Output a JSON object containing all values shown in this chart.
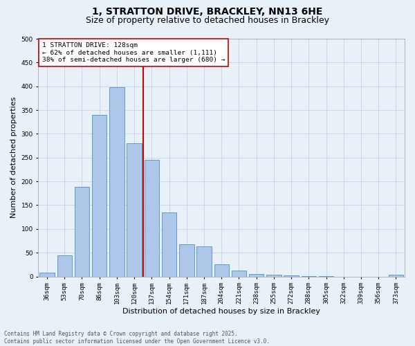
{
  "title_line1": "1, STRATTON DRIVE, BRACKLEY, NN13 6HE",
  "title_line2": "Size of property relative to detached houses in Brackley",
  "xlabel": "Distribution of detached houses by size in Brackley",
  "ylabel": "Number of detached properties",
  "bar_categories": [
    "36sqm",
    "53sqm",
    "70sqm",
    "86sqm",
    "103sqm",
    "120sqm",
    "137sqm",
    "154sqm",
    "171sqm",
    "187sqm",
    "204sqm",
    "221sqm",
    "238sqm",
    "255sqm",
    "272sqm",
    "288sqm",
    "305sqm",
    "322sqm",
    "339sqm",
    "356sqm",
    "373sqm"
  ],
  "bar_values": [
    8,
    45,
    188,
    340,
    398,
    280,
    245,
    135,
    68,
    63,
    25,
    12,
    5,
    4,
    2,
    1,
    1,
    0,
    0,
    0,
    3
  ],
  "bar_color": "#aec6e8",
  "bar_edge_color": "#5b9bd5",
  "vline_color": "#cc0000",
  "vline_index": 5.5,
  "annotation_text": "1 STRATTON DRIVE: 128sqm\n← 62% of detached houses are smaller (1,111)\n38% of semi-detached houses are larger (680) →",
  "annotation_box_color": "#ffffff",
  "annotation_box_edge": "#cc0000",
  "ylim": [
    0,
    500
  ],
  "yticks": [
    0,
    50,
    100,
    150,
    200,
    250,
    300,
    350,
    400,
    450,
    500
  ],
  "grid_color": "#c8d8ea",
  "bg_color": "#e8f0f8",
  "footnote": "Contains HM Land Registry data © Crown copyright and database right 2025.\nContains public sector information licensed under the Open Government Licence v3.0.",
  "title_fontsize": 10,
  "subtitle_fontsize": 9,
  "tick_fontsize": 6.5,
  "label_fontsize": 8,
  "annot_fontsize": 6.8,
  "footnote_fontsize": 5.5
}
